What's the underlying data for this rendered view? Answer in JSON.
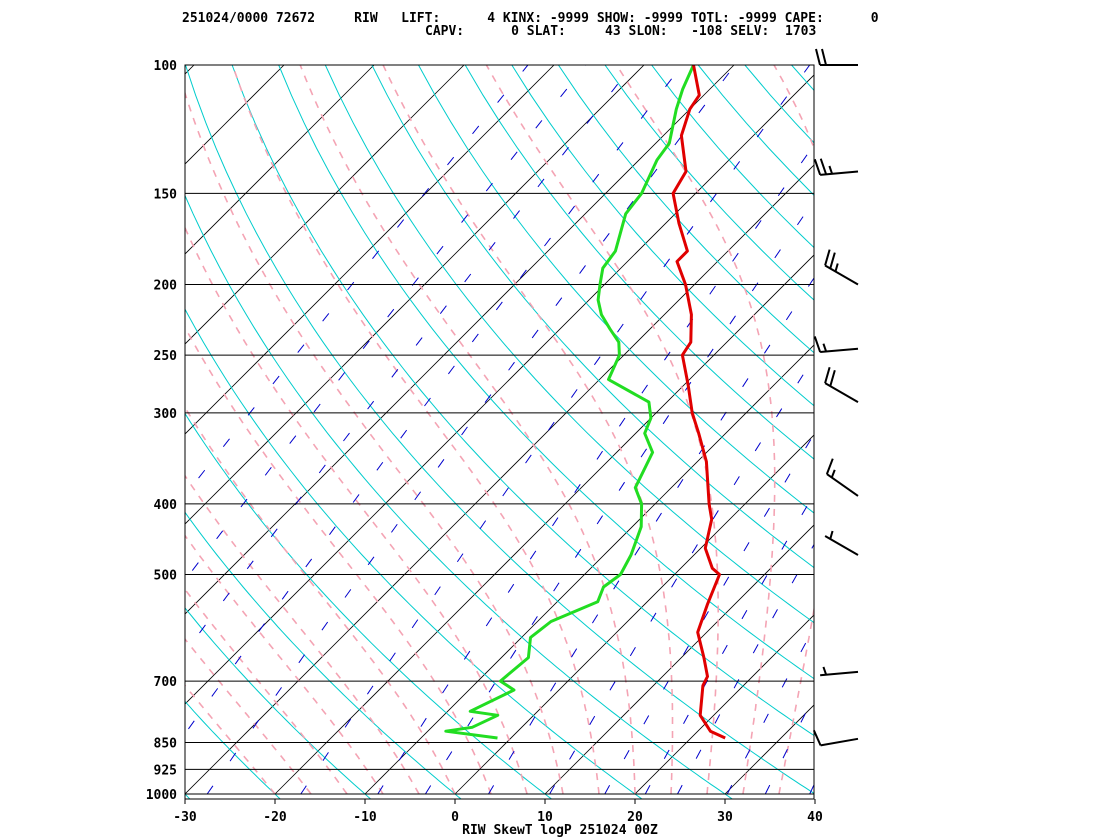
{
  "header": {
    "line1": "251024/0000 72672     RIW   LIFT:      4 KINX: -9999 SHOW: -9999 TOTL: -9999 CAPE:      0",
    "line2": "CAPV:      0 SLAT:     43 SLON:   -108 SELV:  1703"
  },
  "footer": "RIW SkewT logP 251024 00Z",
  "colors": {
    "temperature": "#e00000",
    "dewpoint": "#22dd22",
    "isotherm": "#000000",
    "isobar": "#000000",
    "dry_adiabat": "#00cccc",
    "moist_adiabat": "#f4a4b4",
    "mixing_ratio": "#0000cc",
    "wind_barb": "#000000"
  },
  "chart_data": {
    "type": "line",
    "diagram": "skew-t log-p",
    "pressure_levels": [
      100,
      150,
      200,
      250,
      300,
      400,
      500,
      700,
      850,
      925,
      1000
    ],
    "pressure_labels": [
      "100",
      "150",
      "200",
      "250",
      "300",
      "400",
      "500",
      "700",
      "850",
      "925",
      "1000"
    ],
    "x_ticks": [
      -30,
      -20,
      -10,
      0,
      10,
      20,
      30,
      40
    ],
    "x_tick_labels": [
      "-30",
      "-20",
      "-10",
      "0",
      "10",
      "20",
      "30",
      "40"
    ],
    "xlim": [
      -30,
      40
    ],
    "ylim": [
      1000,
      100
    ],
    "temperature": [
      {
        "p": 838,
        "t": 23.8
      },
      {
        "p": 820,
        "t": 21.4
      },
      {
        "p": 780,
        "t": 18.5
      },
      {
        "p": 710,
        "t": 15.5
      },
      {
        "p": 690,
        "t": 15.0
      },
      {
        "p": 650,
        "t": 12.5
      },
      {
        "p": 600,
        "t": 9.0
      },
      {
        "p": 550,
        "t": 7.0
      },
      {
        "p": 500,
        "t": 5.0
      },
      {
        "p": 490,
        "t": 3.5
      },
      {
        "p": 460,
        "t": 0.5
      },
      {
        "p": 420,
        "t": -2.0
      },
      {
        "p": 400,
        "t": -4.0
      },
      {
        "p": 350,
        "t": -9.0
      },
      {
        "p": 320,
        "t": -13.0
      },
      {
        "p": 300,
        "t": -16.0
      },
      {
        "p": 275,
        "t": -19.5
      },
      {
        "p": 250,
        "t": -23.5
      },
      {
        "p": 240,
        "t": -24.0
      },
      {
        "p": 220,
        "t": -27.0
      },
      {
        "p": 200,
        "t": -31.0
      },
      {
        "p": 186,
        "t": -34.5
      },
      {
        "p": 180,
        "t": -34.5
      },
      {
        "p": 165,
        "t": -38.5
      },
      {
        "p": 150,
        "t": -42.5
      },
      {
        "p": 140,
        "t": -43.5
      },
      {
        "p": 125,
        "t": -48.0
      },
      {
        "p": 115,
        "t": -50.0
      },
      {
        "p": 110,
        "t": -50.5
      },
      {
        "p": 100,
        "t": -54.5
      }
    ],
    "dewpoint": [
      {
        "p": 838,
        "t": -1.5
      },
      {
        "p": 820,
        "t": -8.0
      },
      {
        "p": 810,
        "t": -5.5
      },
      {
        "p": 780,
        "t": -4.0
      },
      {
        "p": 770,
        "t": -7.5
      },
      {
        "p": 720,
        "t": -5.0
      },
      {
        "p": 700,
        "t": -7.5
      },
      {
        "p": 650,
        "t": -7.0
      },
      {
        "p": 610,
        "t": -9.0
      },
      {
        "p": 580,
        "t": -8.5
      },
      {
        "p": 545,
        "t": -5.5
      },
      {
        "p": 520,
        "t": -6.5
      },
      {
        "p": 500,
        "t": -6.0
      },
      {
        "p": 470,
        "t": -7.0
      },
      {
        "p": 430,
        "t": -9.0
      },
      {
        "p": 400,
        "t": -11.5
      },
      {
        "p": 380,
        "t": -14.0
      },
      {
        "p": 340,
        "t": -16.0
      },
      {
        "p": 320,
        "t": -19.0
      },
      {
        "p": 305,
        "t": -20.0
      },
      {
        "p": 290,
        "t": -22.0
      },
      {
        "p": 270,
        "t": -29.0
      },
      {
        "p": 250,
        "t": -30.5
      },
      {
        "p": 240,
        "t": -32.0
      },
      {
        "p": 230,
        "t": -34.5
      },
      {
        "p": 220,
        "t": -37.0
      },
      {
        "p": 210,
        "t": -39.0
      },
      {
        "p": 200,
        "t": -40.5
      },
      {
        "p": 190,
        "t": -42.0
      },
      {
        "p": 180,
        "t": -42.5
      },
      {
        "p": 160,
        "t": -45.5
      },
      {
        "p": 150,
        "t": -46.0
      },
      {
        "p": 135,
        "t": -48.0
      },
      {
        "p": 128,
        "t": -48.5
      },
      {
        "p": 115,
        "t": -51.5
      },
      {
        "p": 108,
        "t": -53.0
      },
      {
        "p": 100,
        "t": -54.5
      }
    ],
    "winds": [
      {
        "p": 100,
        "dir": 270,
        "spd": 20
      },
      {
        "p": 140,
        "dir": 265,
        "spd": 25
      },
      {
        "p": 200,
        "dir": 300,
        "spd": 25
      },
      {
        "p": 245,
        "dir": 265,
        "spd": 15
      },
      {
        "p": 290,
        "dir": 300,
        "spd": 20
      },
      {
        "p": 390,
        "dir": 305,
        "spd": 15
      },
      {
        "p": 470,
        "dir": 300,
        "spd": 5
      },
      {
        "p": 680,
        "dir": 265,
        "spd": 5
      },
      {
        "p": 840,
        "dir": 260,
        "spd": 10
      }
    ]
  }
}
